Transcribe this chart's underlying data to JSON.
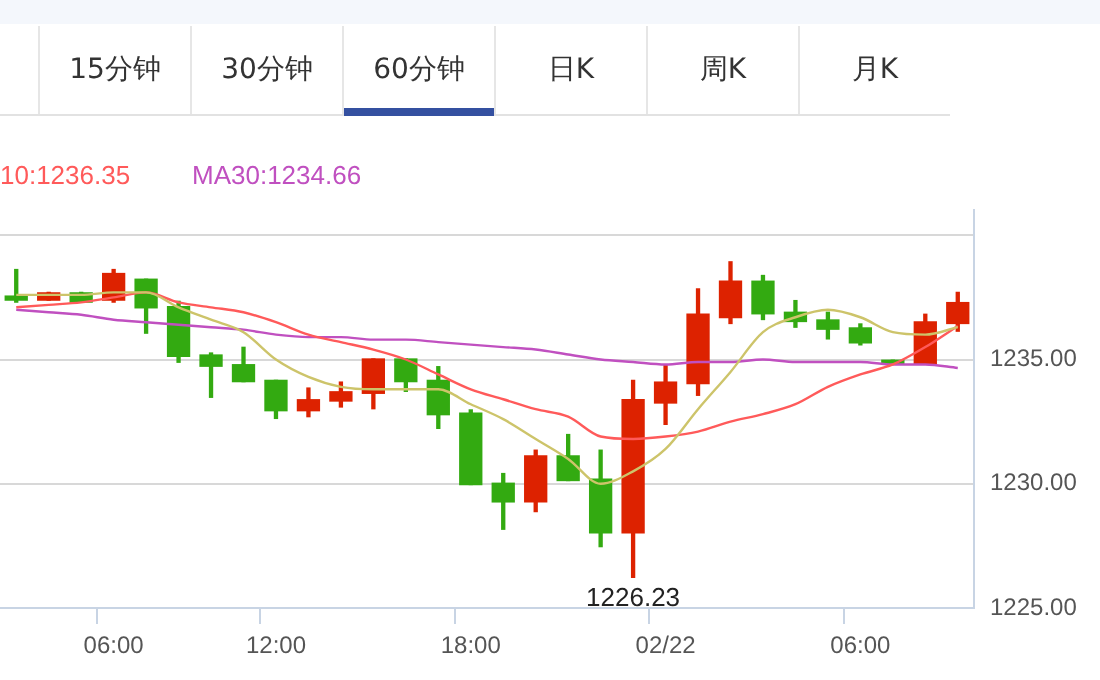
{
  "chart_data": {
    "type": "candlestick",
    "categories": [
      null,
      null,
      null,
      "06:00",
      null,
      null,
      null,
      null,
      "12:00",
      null,
      null,
      null,
      null,
      null,
      "18:00",
      null,
      null,
      null,
      null,
      null,
      "02/22",
      null,
      null,
      null,
      null,
      null,
      "06:00",
      null,
      null,
      null
    ],
    "ohlc": [
      [
        1237.55,
        1238.62,
        1237.31,
        1237.39
      ],
      [
        1237.39,
        1237.7,
        1237.39,
        1237.68
      ],
      [
        1237.68,
        1237.7,
        1237.31,
        1237.31
      ],
      [
        1237.39,
        1238.62,
        1237.31,
        1238.46
      ],
      [
        1238.23,
        1238.23,
        1236.06,
        1237.08
      ],
      [
        1237.13,
        1237.34,
        1234.89,
        1235.13
      ],
      [
        1235.18,
        1235.26,
        1233.48,
        1234.73
      ],
      [
        1234.79,
        1235.49,
        1234.11,
        1234.11
      ],
      [
        1234.16,
        1234.16,
        1232.63,
        1232.94
      ],
      [
        1232.94,
        1233.85,
        1232.7,
        1233.38
      ],
      [
        1233.33,
        1234.09,
        1233.09,
        1233.7
      ],
      [
        1233.64,
        1235.02,
        1233.02,
        1235.02
      ],
      [
        1235.02,
        1235.02,
        1233.72,
        1234.11
      ],
      [
        1234.16,
        1234.71,
        1232.23,
        1232.78
      ],
      [
        1232.84,
        1232.97,
        1229.97,
        1229.97
      ],
      [
        1230.02,
        1230.41,
        1228.17,
        1229.27
      ],
      [
        1229.27,
        1231.35,
        1228.88,
        1231.12
      ],
      [
        1231.12,
        1231.98,
        1230.13,
        1230.13
      ],
      [
        1230.18,
        1231.35,
        1227.47,
        1228.02
      ],
      [
        1228.02,
        1234.16,
        1226.23,
        1233.38
      ],
      [
        1233.25,
        1234.79,
        1232.39,
        1234.09
      ],
      [
        1234.03,
        1237.84,
        1233.56,
        1236.82
      ],
      [
        1236.69,
        1238.93,
        1236.45,
        1238.15
      ],
      [
        1238.15,
        1238.38,
        1236.61,
        1236.84
      ],
      [
        1236.9,
        1237.37,
        1236.3,
        1236.53
      ],
      [
        1236.59,
        1236.9,
        1235.83,
        1236.22
      ],
      [
        1236.27,
        1236.43,
        1235.59,
        1235.67
      ],
      [
        1234.97,
        1234.97,
        1234.81,
        1234.81
      ],
      [
        1234.81,
        1236.82,
        1234.81,
        1236.51
      ],
      [
        1236.45,
        1237.7,
        1236.14,
        1237.29
      ]
    ],
    "colors": [
      "#33aa11",
      "#dd2200",
      "#33aa11",
      "#dd2200",
      "#33aa11",
      "#33aa11",
      "#33aa11",
      "#33aa11",
      "#33aa11",
      "#dd2200",
      "#dd2200",
      "#dd2200",
      "#33aa11",
      "#33aa11",
      "#33aa11",
      "#33aa11",
      "#dd2200",
      "#33aa11",
      "#33aa11",
      "#dd2200",
      "#dd2200",
      "#dd2200",
      "#dd2200",
      "#33aa11",
      "#33aa11",
      "#33aa11",
      "#33aa11",
      "#33aa11",
      "#dd2200",
      "#dd2200"
    ],
    "series": [
      {
        "type": "line",
        "color": "#cdc46a",
        "values": [
          1237.6,
          1237.6,
          1237.6,
          1237.7,
          1237.7,
          1237.1,
          1236.6,
          1236.1,
          1235.0,
          1234.3,
          1233.9,
          1233.8,
          1233.8,
          1233.8,
          1233.2,
          1232.6,
          1231.8,
          1231.0,
          1230.0,
          1230.5,
          1231.4,
          1233.0,
          1234.5,
          1236.1,
          1236.7,
          1237.0,
          1236.7,
          1236.1,
          1236.0,
          1236.3
        ]
      },
      {
        "type": "line",
        "color": "#ff5a5a",
        "values": [
          1237.1,
          1237.2,
          1237.3,
          1237.5,
          1237.7,
          1237.3,
          1237.1,
          1236.9,
          1236.5,
          1236.0,
          1235.7,
          1235.4,
          1235.0,
          1234.4,
          1233.8,
          1233.4,
          1233.0,
          1232.7,
          1231.9,
          1231.8,
          1231.9,
          1232.1,
          1232.5,
          1232.8,
          1233.2,
          1233.9,
          1234.4,
          1234.8,
          1235.5,
          1236.35
        ]
      },
      {
        "type": "line",
        "color": "#c050c0",
        "values": [
          1237.0,
          1236.9,
          1236.8,
          1236.6,
          1236.5,
          1236.4,
          1236.3,
          1236.2,
          1236.0,
          1235.9,
          1235.9,
          1235.8,
          1235.8,
          1235.7,
          1235.6,
          1235.5,
          1235.4,
          1235.2,
          1235.0,
          1234.9,
          1234.8,
          1234.9,
          1234.9,
          1235.0,
          1234.9,
          1234.9,
          1234.9,
          1234.8,
          1234.8,
          1234.66
        ]
      }
    ],
    "ylim": [
      1225,
      1241
    ],
    "yticks": [
      {
        "value": 1225,
        "label": "1225.00"
      },
      {
        "value": 1230,
        "label": "1230.00"
      },
      {
        "value": 1235,
        "label": "1235.00"
      },
      {
        "value": 1240,
        "label": null
      }
    ],
    "grid": "y",
    "annotations": [
      "15分钟",
      "30分钟",
      "60分钟",
      "日K",
      "周K",
      "月K",
      "10:1236.35",
      "MA30:1234.66",
      {
        "text": "1226.23",
        "y": 1226.23
      }
    ]
  }
}
